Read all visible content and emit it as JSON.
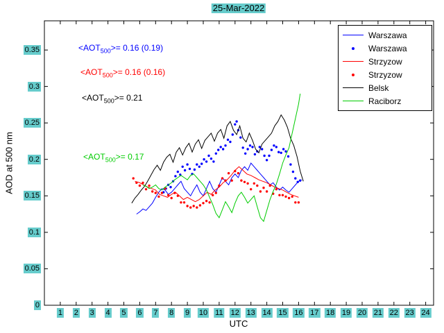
{
  "figure": {
    "highlight_color": "#66cccc",
    "background": "#ffffff",
    "axis_color": "#000000"
  },
  "chart_data": {
    "type": "line",
    "title": "25-Mar-2022",
    "xlabel": "UTC",
    "ylabel": "AOD at 500 nm",
    "xlim": [
      0,
      24.5
    ],
    "ylim": [
      0,
      0.39
    ],
    "grid": false,
    "legend_position": "top-right",
    "xtick_values": [
      1,
      2,
      3,
      4,
      5,
      6,
      7,
      8,
      9,
      10,
      11,
      12,
      13,
      14,
      15,
      16,
      17,
      18,
      19,
      20,
      21,
      22,
      23,
      24
    ],
    "xtick_labels": [
      "1",
      "2",
      "3",
      "4",
      "5",
      "6",
      "7",
      "8",
      "9",
      "10",
      "11",
      "12",
      "13",
      "14",
      "15",
      "16",
      "17",
      "18",
      "19",
      "20",
      "21",
      "22",
      "23",
      "24"
    ],
    "ytick_values": [
      0,
      0.05,
      0.1,
      0.15,
      0.2,
      0.25,
      0.3,
      0.35
    ],
    "ytick_labels": [
      "0",
      "0.05",
      "0.1",
      "0.15",
      "0.2",
      "0.25",
      "0.3",
      "0.35"
    ],
    "series": [
      {
        "name": "Warszawa",
        "type": "line",
        "color": "#0000ff",
        "x": [
          5.8,
          6.0,
          6.2,
          6.4,
          6.6,
          6.8,
          7.0,
          7.2,
          7.4,
          7.6,
          7.8,
          8.0,
          8.2,
          8.4,
          8.6,
          8.8,
          9.0,
          9.2,
          9.4,
          9.6,
          9.8,
          10.0,
          10.2,
          10.4,
          10.6,
          10.8,
          11.0,
          11.2,
          11.4,
          11.6,
          11.8,
          12.0,
          12.2,
          12.4,
          12.6,
          12.8,
          13.0,
          13.2,
          13.4,
          13.6,
          13.8,
          14.0,
          14.2,
          14.4,
          14.6,
          14.8,
          15.0,
          15.2,
          15.4,
          15.6,
          15.8,
          16.0,
          16.2
        ],
        "y": [
          0.125,
          0.128,
          0.132,
          0.13,
          0.135,
          0.14,
          0.148,
          0.155,
          0.16,
          0.158,
          0.152,
          0.155,
          0.16,
          0.165,
          0.17,
          0.16,
          0.155,
          0.15,
          0.158,
          0.165,
          0.155,
          0.15,
          0.16,
          0.17,
          0.16,
          0.155,
          0.165,
          0.175,
          0.17,
          0.165,
          0.175,
          0.18,
          0.175,
          0.185,
          0.19,
          0.185,
          0.195,
          0.19,
          0.185,
          0.18,
          0.175,
          0.17,
          0.165,
          0.168,
          0.162,
          0.158,
          0.162,
          0.158,
          0.155,
          0.16,
          0.165,
          0.17,
          0.172
        ]
      },
      {
        "name": "Warszawa",
        "type": "scatter",
        "color": "#0000ff",
        "x": [
          7.5,
          7.65,
          7.8,
          7.95,
          8.1,
          8.25,
          8.4,
          8.55,
          8.7,
          8.85,
          9.0,
          9.15,
          9.3,
          9.45,
          9.6,
          9.75,
          9.9,
          10.05,
          10.2,
          10.35,
          10.5,
          10.65,
          10.8,
          10.95,
          11.1,
          11.25,
          11.4,
          11.55,
          11.7,
          11.85,
          12.0,
          12.1,
          12.2,
          12.35,
          12.5,
          12.65,
          12.8,
          12.95,
          13.1,
          13.25,
          13.4,
          13.55,
          13.7,
          13.85,
          14.0,
          14.15,
          14.3,
          14.45,
          14.6,
          14.75,
          14.9,
          15.05,
          15.2,
          15.35,
          15.5,
          15.65,
          15.8,
          15.95,
          16.1
        ],
        "y": [
          0.155,
          0.16,
          0.165,
          0.162,
          0.17,
          0.177,
          0.183,
          0.179,
          0.19,
          0.185,
          0.193,
          0.187,
          0.18,
          0.186,
          0.193,
          0.19,
          0.194,
          0.2,
          0.197,
          0.205,
          0.201,
          0.197,
          0.208,
          0.213,
          0.217,
          0.214,
          0.219,
          0.227,
          0.224,
          0.234,
          0.248,
          0.252,
          0.24,
          0.23,
          0.216,
          0.208,
          0.214,
          0.219,
          0.217,
          0.207,
          0.211,
          0.217,
          0.214,
          0.205,
          0.199,
          0.205,
          0.213,
          0.219,
          0.217,
          0.21,
          0.209,
          0.214,
          0.211,
          0.204,
          0.193,
          0.183,
          0.174,
          0.169,
          0.171
        ]
      },
      {
        "name": "Strzyzow",
        "type": "line",
        "color": "#ff0000",
        "x": [
          5.7,
          6.0,
          6.25,
          6.5,
          6.75,
          7.0,
          7.25,
          7.5,
          7.75,
          8.0,
          8.25,
          8.5,
          8.75,
          9.0,
          9.25,
          9.5,
          9.75,
          10.0,
          10.25,
          10.5,
          10.75,
          11.0,
          11.25,
          11.5,
          11.75,
          12.0,
          12.25,
          12.5,
          12.75,
          13.0,
          13.25,
          13.5,
          13.75,
          14.0,
          14.25,
          14.5,
          14.75,
          15.0,
          15.25,
          15.5,
          15.75,
          16.0
        ],
        "y": [
          0.17,
          0.168,
          0.165,
          0.162,
          0.16,
          0.158,
          0.152,
          0.15,
          0.148,
          0.152,
          0.155,
          0.15,
          0.145,
          0.148,
          0.145,
          0.142,
          0.145,
          0.15,
          0.155,
          0.152,
          0.158,
          0.162,
          0.168,
          0.172,
          0.178,
          0.185,
          0.19,
          0.185,
          0.18,
          0.178,
          0.175,
          0.172,
          0.17,
          0.168,
          0.165,
          0.162,
          0.16,
          0.158,
          0.155,
          0.152,
          0.15,
          0.148
        ]
      },
      {
        "name": "Strzyzow",
        "type": "scatter",
        "color": "#ff0000",
        "x": [
          5.6,
          5.8,
          6.0,
          6.2,
          6.4,
          6.6,
          6.8,
          7.0,
          7.2,
          7.4,
          7.6,
          7.8,
          8.0,
          8.2,
          8.4,
          8.6,
          8.8,
          9.0,
          9.2,
          9.4,
          9.6,
          9.8,
          10.0,
          10.2,
          10.4,
          10.6,
          10.8,
          11.0,
          11.2,
          11.4,
          11.6,
          11.8,
          12.0,
          12.2,
          12.4,
          12.6,
          12.8,
          13.0,
          13.2,
          13.4,
          13.6,
          13.8,
          14.0,
          14.2,
          14.4,
          14.6,
          14.8,
          15.0,
          15.2,
          15.4,
          15.6,
          15.8,
          16.0
        ],
        "y": [
          0.174,
          0.168,
          0.164,
          0.168,
          0.159,
          0.164,
          0.156,
          0.154,
          0.149,
          0.154,
          0.16,
          0.151,
          0.147,
          0.154,
          0.15,
          0.141,
          0.141,
          0.136,
          0.134,
          0.136,
          0.134,
          0.137,
          0.14,
          0.143,
          0.141,
          0.151,
          0.154,
          0.164,
          0.174,
          0.171,
          0.181,
          0.171,
          0.184,
          0.181,
          0.171,
          0.169,
          0.167,
          0.159,
          0.167,
          0.164,
          0.156,
          0.161,
          0.156,
          0.164,
          0.153,
          0.159,
          0.151,
          0.151,
          0.149,
          0.147,
          0.149,
          0.141,
          0.141
        ]
      },
      {
        "name": "Belsk",
        "type": "line",
        "color": "#000000",
        "x": [
          5.5,
          5.7,
          5.9,
          6.1,
          6.3,
          6.5,
          6.7,
          6.9,
          7.1,
          7.3,
          7.5,
          7.7,
          7.9,
          8.1,
          8.3,
          8.5,
          8.7,
          8.9,
          9.1,
          9.3,
          9.5,
          9.7,
          9.9,
          10.1,
          10.3,
          10.5,
          10.7,
          10.9,
          11.1,
          11.3,
          11.5,
          11.7,
          11.9,
          12.1,
          12.3,
          12.5,
          12.7,
          12.9,
          13.1,
          13.3,
          13.5,
          13.7,
          13.9,
          14.1,
          14.3,
          14.5,
          14.7,
          14.9,
          15.1,
          15.3,
          15.5,
          15.7,
          15.9,
          16.1,
          16.3
        ],
        "y": [
          0.14,
          0.147,
          0.152,
          0.158,
          0.163,
          0.17,
          0.178,
          0.186,
          0.192,
          0.185,
          0.196,
          0.203,
          0.207,
          0.196,
          0.21,
          0.216,
          0.206,
          0.216,
          0.222,
          0.21,
          0.221,
          0.227,
          0.215,
          0.226,
          0.231,
          0.236,
          0.225,
          0.236,
          0.241,
          0.229,
          0.246,
          0.252,
          0.24,
          0.234,
          0.246,
          0.229,
          0.224,
          0.236,
          0.226,
          0.214,
          0.209,
          0.221,
          0.226,
          0.231,
          0.236,
          0.246,
          0.252,
          0.261,
          0.254,
          0.244,
          0.229,
          0.219,
          0.204,
          0.184,
          0.17
        ]
      },
      {
        "name": "Raciborz",
        "type": "line",
        "color": "#00cc00",
        "x": [
          6.2,
          6.4,
          6.6,
          6.8,
          7.0,
          7.2,
          7.4,
          7.6,
          7.8,
          8.0,
          8.2,
          8.4,
          8.6,
          8.8,
          9.0,
          9.2,
          9.4,
          9.6,
          9.8,
          10.0,
          10.2,
          10.4,
          10.6,
          10.8,
          11.0,
          11.2,
          11.4,
          11.6,
          11.8,
          12.0,
          12.2,
          12.4,
          12.6,
          12.8,
          13.0,
          13.2,
          13.4,
          13.6,
          13.8,
          14.0,
          14.2,
          14.4,
          14.6,
          14.8,
          15.0,
          15.2,
          15.4,
          15.6,
          15.8,
          16.0,
          16.1
        ],
        "y": [
          0.165,
          0.163,
          0.16,
          0.162,
          0.165,
          0.16,
          0.158,
          0.162,
          0.165,
          0.168,
          0.172,
          0.175,
          0.178,
          0.175,
          0.172,
          0.178,
          0.18,
          0.175,
          0.17,
          0.165,
          0.158,
          0.148,
          0.138,
          0.126,
          0.12,
          0.131,
          0.142,
          0.135,
          0.127,
          0.14,
          0.15,
          0.155,
          0.148,
          0.14,
          0.145,
          0.15,
          0.135,
          0.12,
          0.115,
          0.13,
          0.145,
          0.156,
          0.166,
          0.18,
          0.195,
          0.206,
          0.216,
          0.236,
          0.256,
          0.276,
          0.29
        ]
      }
    ],
    "annotations": [
      {
        "pre": "<AOT",
        "sub": "500",
        "post": ">= 0.16 (0.19)",
        "color": "#0000ff",
        "station": "Warszawa"
      },
      {
        "pre": "<AOT",
        "sub": "500",
        "post": ">= 0.16 (0.16)",
        "color": "#ff0000",
        "station": "Strzyzow"
      },
      {
        "pre": "<AOT",
        "sub": "500",
        "post": ">= 0.21",
        "color": "#000000",
        "station": "Belsk"
      },
      {
        "pre": "<AOT",
        "sub": "500",
        "post": ">= 0.17",
        "color": "#00cc00",
        "station": "Raciborz"
      }
    ]
  }
}
